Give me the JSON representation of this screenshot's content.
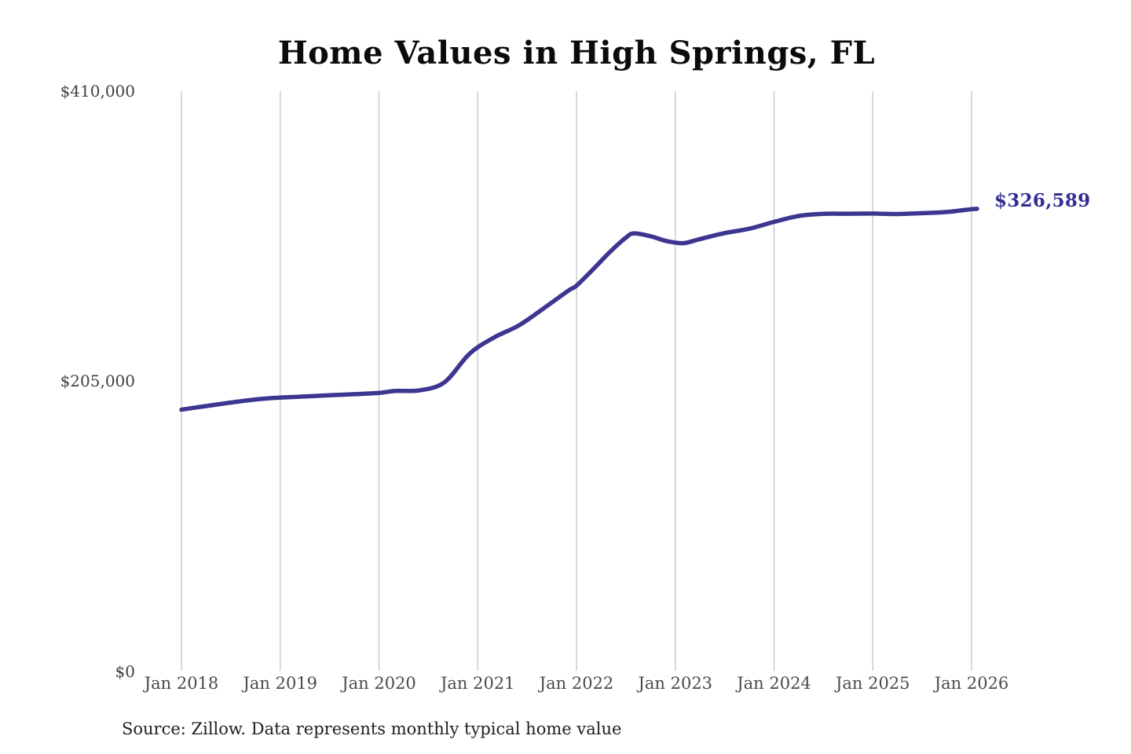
{
  "chart_data": {
    "type": "line",
    "title": "Home Values in High Springs, FL",
    "source_note": "Source: Zillow. Data represents monthly typical home value",
    "end_label": "$326,589",
    "end_value": 326589,
    "y_axis": {
      "min": 0,
      "max": 410000,
      "tick_labels": [
        "$410,000",
        "$205,000",
        "$0"
      ],
      "tick_values": [
        410000,
        205000,
        0
      ]
    },
    "x_axis": {
      "tick_labels": [
        "Jan 2018",
        "Jan 2019",
        "Jan 2020",
        "Jan 2021",
        "Jan 2022",
        "Jan 2023",
        "Jan 2024",
        "Jan 2025",
        "Jan 2026"
      ]
    },
    "series": [
      {
        "name": "Monthly typical home value",
        "points": [
          [
            "2018-01",
            185000
          ],
          [
            "2018-04",
            187500
          ],
          [
            "2018-07",
            190000
          ],
          [
            "2018-10",
            192200
          ],
          [
            "2019-01",
            193500
          ],
          [
            "2019-04",
            194300
          ],
          [
            "2019-07",
            195100
          ],
          [
            "2019-10",
            195900
          ],
          [
            "2020-01",
            196800
          ],
          [
            "2020-03",
            198200
          ],
          [
            "2020-06",
            198700
          ],
          [
            "2020-09",
            204500
          ],
          [
            "2020-12",
            224500
          ],
          [
            "2021-03",
            236000
          ],
          [
            "2021-06",
            244500
          ],
          [
            "2021-09",
            256500
          ],
          [
            "2021-12",
            269000
          ],
          [
            "2022-01",
            272600
          ],
          [
            "2022-03",
            284000
          ],
          [
            "2022-05",
            296000
          ],
          [
            "2022-07",
            306500
          ],
          [
            "2022-08",
            309500
          ],
          [
            "2022-10",
            307500
          ],
          [
            "2022-12",
            304000
          ],
          [
            "2023-02",
            302600
          ],
          [
            "2023-04",
            305500
          ],
          [
            "2023-07",
            309700
          ],
          [
            "2023-10",
            312800
          ],
          [
            "2024-01",
            317600
          ],
          [
            "2024-04",
            321800
          ],
          [
            "2024-07",
            323300
          ],
          [
            "2024-10",
            323400
          ],
          [
            "2025-01",
            323500
          ],
          [
            "2025-04",
            323200
          ],
          [
            "2025-07",
            323800
          ],
          [
            "2025-10",
            324600
          ],
          [
            "2026-01",
            326589
          ]
        ]
      }
    ],
    "layout_hints": {
      "grid": "vertical-only",
      "legend": "none",
      "x_range": [
        "2018-01",
        "2026-01"
      ]
    },
    "colors": {
      "line": "#3d3691",
      "end_label": "#312e93",
      "gridline": "#cccccc",
      "axis_text": "#454545",
      "title_text": "#0b0b0b"
    }
  }
}
